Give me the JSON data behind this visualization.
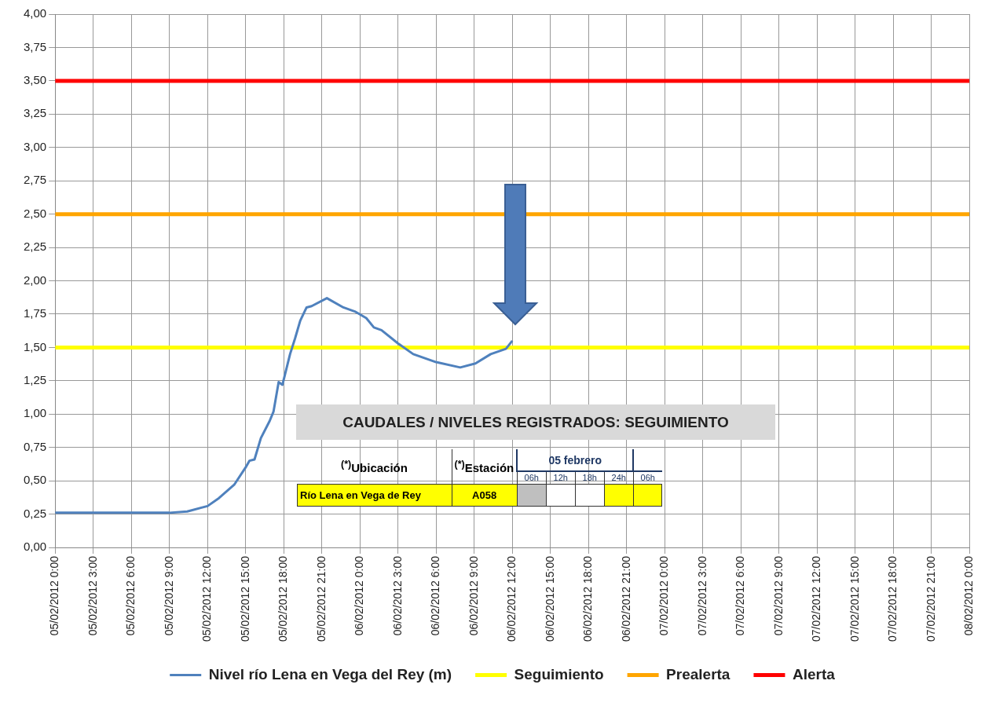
{
  "chart_data": {
    "type": "line",
    "x": [
      "2012-02-05T00:00",
      "2012-02-05T03:00",
      "2012-02-05T06:00",
      "2012-02-05T09:00",
      "2012-02-05T10:24",
      "2012-02-05T12:00",
      "2012-02-05T12:54",
      "2012-02-05T14:06",
      "2012-02-05T15:00",
      "2012-02-05T15:18",
      "2012-02-05T15:42",
      "2012-02-05T16:12",
      "2012-02-05T16:54",
      "2012-02-05T17:12",
      "2012-02-05T17:36",
      "2012-02-05T17:54",
      "2012-02-05T18:30",
      "2012-02-05T18:54",
      "2012-02-05T19:18",
      "2012-02-05T19:48",
      "2012-02-05T20:12",
      "2012-02-05T21:24",
      "2012-02-05T22:42",
      "2012-02-05T23:36",
      "2012-02-06T00:30",
      "2012-02-06T01:06",
      "2012-02-06T01:42",
      "2012-02-06T03:00",
      "2012-02-06T04:12",
      "2012-02-06T06:00",
      "2012-02-06T07:54",
      "2012-02-06T09:06",
      "2012-02-06T10:18",
      "2012-02-06T11:30",
      "2012-02-06T12:00"
    ],
    "series": [
      {
        "name": "Nivel río Lena en Vega del Rey (m)",
        "color": "#4f81bd",
        "values": [
          0.26,
          0.26,
          0.26,
          0.26,
          0.27,
          0.31,
          0.37,
          0.47,
          0.6,
          0.65,
          0.66,
          0.82,
          0.95,
          1.02,
          1.24,
          1.22,
          1.45,
          1.57,
          1.7,
          1.8,
          1.81,
          1.87,
          1.8,
          1.77,
          1.72,
          1.65,
          1.63,
          1.53,
          1.45,
          1.39,
          1.35,
          1.38,
          1.45,
          1.49,
          1.55
        ]
      }
    ],
    "ref_lines": [
      {
        "axis": "y",
        "value": 1.5,
        "label": "Seguimiento",
        "color": "#ffff00"
      },
      {
        "axis": "y",
        "value": 2.5,
        "label": "Prealerta",
        "color": "#ffa500"
      },
      {
        "axis": "y",
        "value": 3.5,
        "label": "Alerta",
        "color": "#ff0000"
      }
    ],
    "xlim": [
      "2012-02-05T00:00",
      "2012-02-08T00:00"
    ],
    "xticks": [
      {
        "value": "2012-02-05T00:00",
        "label": "05/02/2012 0:00"
      },
      {
        "value": "2012-02-05T03:00",
        "label": "05/02/2012 3:00"
      },
      {
        "value": "2012-02-05T06:00",
        "label": "05/02/2012 6:00"
      },
      {
        "value": "2012-02-05T09:00",
        "label": "05/02/2012 9:00"
      },
      {
        "value": "2012-02-05T12:00",
        "label": "05/02/2012 12:00"
      },
      {
        "value": "2012-02-05T15:00",
        "label": "05/02/2012 15:00"
      },
      {
        "value": "2012-02-05T18:00",
        "label": "05/02/2012 18:00"
      },
      {
        "value": "2012-02-05T21:00",
        "label": "05/02/2012 21:00"
      },
      {
        "value": "2012-02-06T00:00",
        "label": "06/02/2012 0:00"
      },
      {
        "value": "2012-02-06T03:00",
        "label": "06/02/2012 3:00"
      },
      {
        "value": "2012-02-06T06:00",
        "label": "06/02/2012 6:00"
      },
      {
        "value": "2012-02-06T09:00",
        "label": "06/02/2012 9:00"
      },
      {
        "value": "2012-02-06T12:00",
        "label": "06/02/2012 12:00"
      },
      {
        "value": "2012-02-06T15:00",
        "label": "06/02/2012 15:00"
      },
      {
        "value": "2012-02-06T18:00",
        "label": "06/02/2012 18:00"
      },
      {
        "value": "2012-02-06T21:00",
        "label": "06/02/2012 21:00"
      },
      {
        "value": "2012-02-07T00:00",
        "label": "07/02/2012 0:00"
      },
      {
        "value": "2012-02-07T03:00",
        "label": "07/02/2012 3:00"
      },
      {
        "value": "2012-02-07T06:00",
        "label": "07/02/2012 6:00"
      },
      {
        "value": "2012-02-07T09:00",
        "label": "07/02/2012 9:00"
      },
      {
        "value": "2012-02-07T12:00",
        "label": "07/02/2012 12:00"
      },
      {
        "value": "2012-02-07T15:00",
        "label": "07/02/2012 15:00"
      },
      {
        "value": "2012-02-07T18:00",
        "label": "07/02/2012 18:00"
      },
      {
        "value": "2012-02-07T21:00",
        "label": "07/02/2012 21:00"
      },
      {
        "value": "2012-02-08T00:00",
        "label": "08/02/2012 0:00"
      }
    ],
    "ylim": [
      0,
      4
    ],
    "yticks": [
      {
        "value": 0,
        "label": "0,00"
      },
      {
        "value": 0.25,
        "label": "0,25"
      },
      {
        "value": 0.5,
        "label": "0,50"
      },
      {
        "value": 0.75,
        "label": "0,75"
      },
      {
        "value": 1,
        "label": "1,00"
      },
      {
        "value": 1.25,
        "label": "1,25"
      },
      {
        "value": 1.5,
        "label": "1,50"
      },
      {
        "value": 1.75,
        "label": "1,75"
      },
      {
        "value": 2,
        "label": "2,00"
      },
      {
        "value": 2.25,
        "label": "2,25"
      },
      {
        "value": 2.5,
        "label": "2,50"
      },
      {
        "value": 2.75,
        "label": "2,75"
      },
      {
        "value": 3,
        "label": "3,00"
      },
      {
        "value": 3.25,
        "label": "3,25"
      },
      {
        "value": 3.5,
        "label": "3,50"
      },
      {
        "value": 3.75,
        "label": "3,75"
      },
      {
        "value": 4,
        "label": "4,00"
      }
    ],
    "grid": true,
    "legend": "bottom",
    "marker": "none",
    "line_style": "solid",
    "annotations": [
      "CAUDALES / NIVELES REGISTRADOS: SEGUIMIENTO",
      "$^{(*)}$Ubicación",
      "$^{(*)}$Estación",
      "05 febrero",
      "06h",
      "12h",
      "18h",
      "24h",
      "06h",
      "Río Lena en Vega de Rey",
      "A058"
    ]
  }
}
